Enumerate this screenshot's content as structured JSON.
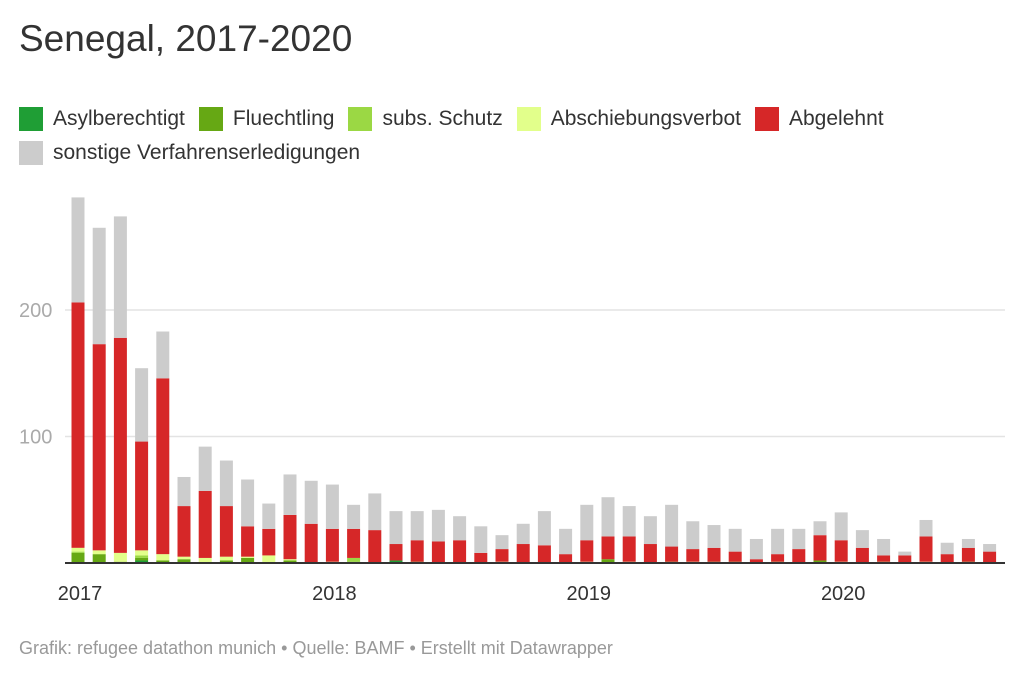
{
  "title": "Senegal, 2017-2020",
  "footer": "Grafik: refugee datathon munich • Quelle: BAMF • Erstellt mit Datawrapper",
  "chart_data": {
    "type": "bar",
    "stacked": true,
    "title": "Senegal, 2017-2020",
    "xlabel": "",
    "ylabel": "",
    "ylim": [
      0,
      290
    ],
    "yticks": [
      100,
      200
    ],
    "ytick_labels": [
      "100",
      "200"
    ],
    "xtick_labels": [
      "2017",
      "2018",
      "2019",
      "2020"
    ],
    "xtick_categories": [
      "2017-01",
      "2018-01",
      "2019-01",
      "2020-01"
    ],
    "grid": true,
    "legend_position": "top-left",
    "categories": [
      "2017-01",
      "2017-02",
      "2017-03",
      "2017-04",
      "2017-05",
      "2017-06",
      "2017-07",
      "2017-08",
      "2017-09",
      "2017-10",
      "2017-11",
      "2017-12",
      "2018-01",
      "2018-02",
      "2018-03",
      "2018-04",
      "2018-05",
      "2018-06",
      "2018-07",
      "2018-08",
      "2018-09",
      "2018-10",
      "2018-11",
      "2018-12",
      "2019-01",
      "2019-02",
      "2019-03",
      "2019-04",
      "2019-05",
      "2019-06",
      "2019-07",
      "2019-08",
      "2019-09",
      "2019-10",
      "2019-11",
      "2019-12",
      "2020-01",
      "2020-02",
      "2020-03",
      "2020-04",
      "2020-05",
      "2020-06",
      "2020-07",
      "2020-08"
    ],
    "series": [
      {
        "name": "Asylberechtigt",
        "color": "#1f9e35",
        "values": [
          0,
          0,
          0,
          2,
          0,
          0,
          0,
          0,
          0,
          0,
          0,
          0,
          0,
          0,
          0,
          2,
          0,
          0,
          0,
          0,
          0,
          0,
          0,
          0,
          0,
          0,
          0,
          0,
          0,
          0,
          0,
          0,
          0,
          0,
          0,
          0,
          0,
          0,
          0,
          0,
          0,
          0,
          0,
          0
        ]
      },
      {
        "name": "Fluechtling",
        "color": "#66a814",
        "values": [
          8,
          7,
          1,
          2,
          2,
          3,
          0,
          2,
          4,
          0,
          2,
          0,
          0,
          1,
          0,
          0,
          1,
          0,
          0,
          0,
          0,
          0,
          0,
          0,
          0,
          3,
          0,
          0,
          1,
          0,
          1,
          1,
          0,
          0,
          0,
          2,
          0,
          0,
          0,
          0,
          0,
          0,
          1,
          0
        ]
      },
      {
        "name": "subs. Schutz",
        "color": "#9bd844",
        "values": [
          1,
          0,
          0,
          2,
          0,
          0,
          0,
          0,
          0,
          0,
          0,
          0,
          0,
          3,
          0,
          0,
          0,
          0,
          0,
          0,
          0,
          0,
          0,
          0,
          0,
          0,
          0,
          0,
          0,
          0,
          0,
          0,
          0,
          1,
          0,
          0,
          0,
          0,
          1,
          0,
          0,
          0,
          0,
          0
        ]
      },
      {
        "name": "Abschiebungsverbot",
        "color": "#e2ff8b",
        "values": [
          3,
          3,
          7,
          4,
          5,
          2,
          4,
          3,
          1,
          6,
          1,
          0,
          1,
          0,
          0,
          0,
          0,
          0,
          0,
          0,
          1,
          0,
          0,
          0,
          1,
          0,
          1,
          0,
          0,
          1,
          0,
          0,
          0,
          0,
          0,
          0,
          1,
          0,
          0,
          0,
          1,
          0,
          0,
          0
        ]
      },
      {
        "name": "Abgelehnt",
        "color": "#d62728",
        "values": [
          194,
          163,
          170,
          86,
          139,
          40,
          53,
          40,
          24,
          21,
          35,
          31,
          26,
          23,
          26,
          13,
          17,
          17,
          18,
          8,
          10,
          15,
          14,
          7,
          17,
          18,
          20,
          15,
          12,
          10,
          11,
          8,
          3,
          6,
          11,
          20,
          17,
          12,
          5,
          6,
          20,
          7,
          11,
          9
        ]
      },
      {
        "name": "sonstige Verfahrenserledigungen",
        "color": "#cccccc",
        "values": [
          83,
          92,
          96,
          58,
          37,
          23,
          35,
          36,
          37,
          20,
          32,
          34,
          35,
          19,
          29,
          26,
          23,
          25,
          19,
          21,
          11,
          16,
          27,
          20,
          28,
          31,
          24,
          22,
          33,
          22,
          18,
          18,
          16,
          20,
          16,
          11,
          22,
          14,
          13,
          3,
          13,
          9,
          7,
          6
        ]
      }
    ]
  }
}
